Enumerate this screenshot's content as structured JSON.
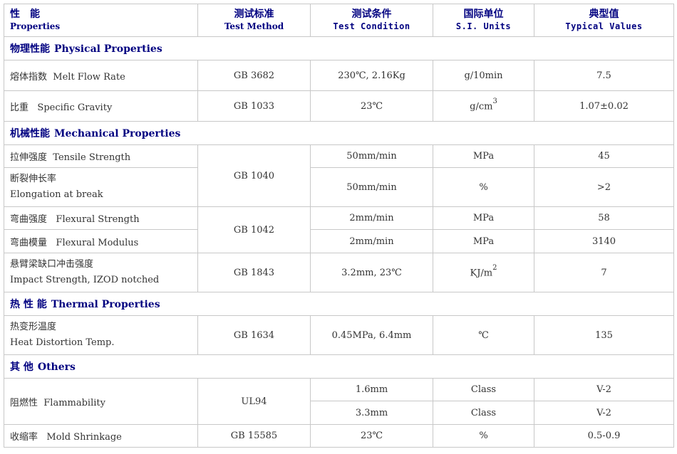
{
  "header": {
    "properties_zh": "性　能",
    "properties_en": "Properties",
    "method_zh": "测试标准",
    "method_en": "Test Method",
    "condition_zh": "测试条件",
    "condition_en": "Test Condition",
    "units_zh": "国际单位",
    "units_en": "S.I. Units",
    "values_zh": "典型值",
    "values_en": "Typical Values"
  },
  "sections": {
    "physical": {
      "zh": "物理性能",
      "en": "Physical Properties"
    },
    "mechanical": {
      "zh": "机械性能",
      "en": "Mechanical Properties"
    },
    "thermal": {
      "zh": "热 性 能",
      "en": "Thermal Properties"
    },
    "others": {
      "zh": "其 他",
      "en": "Others"
    }
  },
  "rows": {
    "mfr": {
      "zh": "熔体指数",
      "en": "Melt Flow Rate",
      "method": "GB 3682",
      "condition": "230℃, 2.16Kg",
      "unit": "g/10min",
      "value": "7.5"
    },
    "sg": {
      "zh": "比重",
      "en": "Specific Gravity",
      "method": "GB 1033",
      "condition": "23℃",
      "unit": "g/cm",
      "unit_sup": "3",
      "value": "1.07±0.02"
    },
    "tensile": {
      "zh": "拉伸强度",
      "en": "Tensile Strength",
      "method": "GB 1040",
      "condition": "50mm/min",
      "unit": "MPa",
      "value": "45"
    },
    "elong": {
      "zh": "断裂伸长率",
      "en": "Elongation at break",
      "condition": "50mm/min",
      "unit": "%",
      "value": ">2"
    },
    "flex_s": {
      "zh": "弯曲强度",
      "en": "Flexural Strength",
      "method": "GB 1042",
      "condition": "2mm/min",
      "unit": "MPa",
      "value": "58"
    },
    "flex_m": {
      "zh": "弯曲模量",
      "en": "Flexural Modulus",
      "condition": "2mm/min",
      "unit": "MPa",
      "value": "3140"
    },
    "impact": {
      "zh": "悬臂梁缺口冲击强度",
      "en": "Impact Strength, IZOD notched",
      "method": "GB 1843",
      "condition": "3.2mm, 23℃",
      "unit": "KJ/m",
      "unit_sup": "2",
      "value": "7"
    },
    "hdt": {
      "zh": "热变形温度",
      "en": "Heat Distortion Temp.",
      "method": "GB 1634",
      "condition": "0.45MPa, 6.4mm",
      "unit": "℃",
      "value": "135"
    },
    "flam": {
      "zh": "阻燃性",
      "en": "Flammability",
      "method": "UL94",
      "condition1": "1.6mm",
      "unit1": "Class",
      "value1": "V-2",
      "condition2": "3.3mm",
      "unit2": "Class",
      "value2": "V-2"
    },
    "shrink": {
      "zh": "收缩率",
      "en": "Mold Shrinkage",
      "method": "GB 15585",
      "condition": "23℃",
      "unit": "%",
      "value": "0.5-0.9"
    }
  }
}
